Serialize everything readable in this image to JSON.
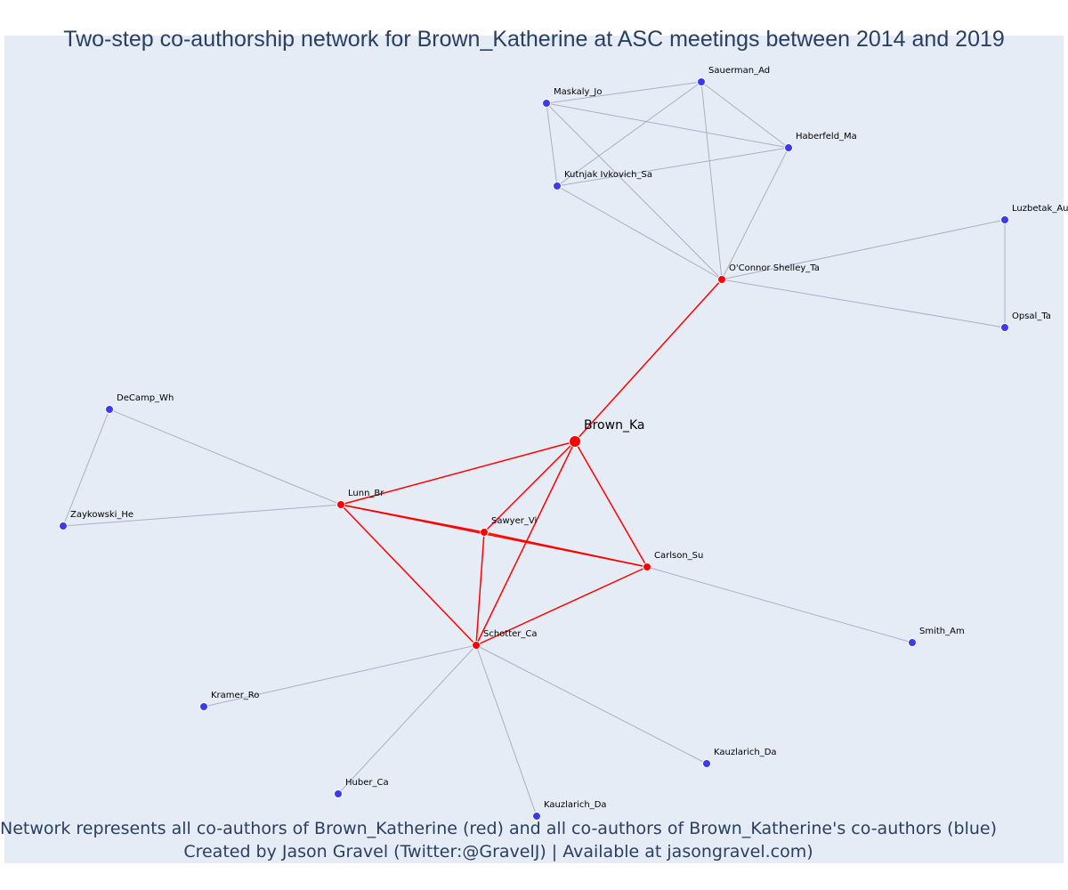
{
  "title": "Two-step co-authorship network for Brown_Katherine at ASC meetings between 2014 and 2019",
  "footer": {
    "line1": "Network represents all co-authors of Brown_Katherine (red) and all co-authors of Brown_Katherine's co-authors (blue)",
    "line2": "Created by Jason Gravel (Twitter:@GravelJ) | Available at jasongravel.com)"
  },
  "colors": {
    "coauthor": "#ff0000",
    "second_step": "#3b3bea",
    "edge_direct": "#ff0000",
    "edge_indirect": "#aab0c4",
    "background": "#e5ecf6",
    "text": "#2a3f5f"
  },
  "nodes": [
    {
      "id": "brown",
      "label": "Brown_Ka",
      "group": "focal"
    },
    {
      "id": "oconnor",
      "label": "O'Connor Shelley_Ta",
      "group": "coauthor"
    },
    {
      "id": "lunn",
      "label": "Lunn_Br",
      "group": "coauthor"
    },
    {
      "id": "sawyer",
      "label": "Sawyer_Vi",
      "group": "coauthor"
    },
    {
      "id": "carlson",
      "label": "Carlson_Su",
      "group": "coauthor"
    },
    {
      "id": "schotter",
      "label": "Schotter_Ca",
      "group": "coauthor"
    },
    {
      "id": "sauerman",
      "label": "Sauerman_Ad",
      "group": "second_step"
    },
    {
      "id": "maskaly",
      "label": "Maskaly_Jo",
      "group": "second_step"
    },
    {
      "id": "haberfeld",
      "label": "Haberfeld_Ma",
      "group": "second_step"
    },
    {
      "id": "kutnjak",
      "label": "Kutnjak Ivkovich_Sa",
      "group": "second_step"
    },
    {
      "id": "luzbetak",
      "label": "Luzbetak_Au",
      "group": "second_step"
    },
    {
      "id": "opsal",
      "label": "Opsal_Ta",
      "group": "second_step"
    },
    {
      "id": "decamp",
      "label": "DeCamp_Wh",
      "group": "second_step"
    },
    {
      "id": "zaykowski",
      "label": "Zaykowski_He",
      "group": "second_step"
    },
    {
      "id": "smith",
      "label": "Smith_Am",
      "group": "second_step"
    },
    {
      "id": "kramer",
      "label": "Kramer_Ro",
      "group": "second_step"
    },
    {
      "id": "kauzlarich1",
      "label": "Kauzlarich_Da",
      "group": "second_step"
    },
    {
      "id": "huber",
      "label": "Huber_Ca",
      "group": "second_step"
    },
    {
      "id": "kauzlarich2",
      "label": "Kauzlarich_Da",
      "group": "second_step"
    }
  ],
  "edges": [
    {
      "source": "brown",
      "target": "oconnor",
      "type": "direct"
    },
    {
      "source": "brown",
      "target": "lunn",
      "type": "direct"
    },
    {
      "source": "brown",
      "target": "sawyer",
      "type": "direct"
    },
    {
      "source": "brown",
      "target": "carlson",
      "type": "direct"
    },
    {
      "source": "brown",
      "target": "schotter",
      "type": "direct"
    },
    {
      "source": "lunn",
      "target": "sawyer",
      "type": "direct"
    },
    {
      "source": "lunn",
      "target": "carlson",
      "type": "direct"
    },
    {
      "source": "lunn",
      "target": "schotter",
      "type": "direct"
    },
    {
      "source": "sawyer",
      "target": "carlson",
      "type": "direct"
    },
    {
      "source": "sawyer",
      "target": "schotter",
      "type": "direct"
    },
    {
      "source": "carlson",
      "target": "schotter",
      "type": "direct"
    },
    {
      "source": "maskaly",
      "target": "sauerman",
      "type": "indirect"
    },
    {
      "source": "maskaly",
      "target": "haberfeld",
      "type": "indirect"
    },
    {
      "source": "maskaly",
      "target": "kutnjak",
      "type": "indirect"
    },
    {
      "source": "maskaly",
      "target": "oconnor",
      "type": "indirect"
    },
    {
      "source": "sauerman",
      "target": "haberfeld",
      "type": "indirect"
    },
    {
      "source": "sauerman",
      "target": "kutnjak",
      "type": "indirect"
    },
    {
      "source": "sauerman",
      "target": "oconnor",
      "type": "indirect"
    },
    {
      "source": "haberfeld",
      "target": "kutnjak",
      "type": "indirect"
    },
    {
      "source": "haberfeld",
      "target": "oconnor",
      "type": "indirect"
    },
    {
      "source": "kutnjak",
      "target": "oconnor",
      "type": "indirect"
    },
    {
      "source": "oconnor",
      "target": "luzbetak",
      "type": "indirect"
    },
    {
      "source": "oconnor",
      "target": "opsal",
      "type": "indirect"
    },
    {
      "source": "luzbetak",
      "target": "opsal",
      "type": "indirect"
    },
    {
      "source": "decamp",
      "target": "lunn",
      "type": "indirect"
    },
    {
      "source": "decamp",
      "target": "zaykowski",
      "type": "indirect"
    },
    {
      "source": "zaykowski",
      "target": "lunn",
      "type": "indirect"
    },
    {
      "source": "carlson",
      "target": "smith",
      "type": "indirect"
    },
    {
      "source": "schotter",
      "target": "kramer",
      "type": "indirect"
    },
    {
      "source": "schotter",
      "target": "kauzlarich1",
      "type": "indirect"
    },
    {
      "source": "schotter",
      "target": "huber",
      "type": "indirect"
    },
    {
      "source": "schotter",
      "target": "kauzlarich2",
      "type": "indirect"
    }
  ]
}
